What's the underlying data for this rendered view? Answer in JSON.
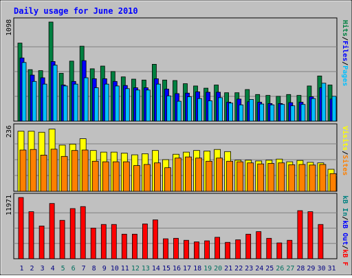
{
  "chart_data": {
    "type": "bar",
    "title": "Daily usage for June 2010",
    "x_tick_labels": [
      "1",
      "2",
      "3",
      "4",
      "5",
      "6",
      "7",
      "8",
      "9",
      "10",
      "11",
      "12",
      "13",
      "14",
      "15",
      "16",
      "17",
      "18",
      "19",
      "20",
      "21",
      "22",
      "23",
      "24",
      "25",
      "26",
      "27",
      "28",
      "29",
      "30",
      "31"
    ],
    "weekend_days": [
      "5",
      "6",
      "12",
      "13",
      "19",
      "20",
      "26",
      "27"
    ],
    "colors": {
      "background": "#c0c0c0",
      "frame": "#ffffff",
      "title": "#0000ff",
      "hits": "#008040",
      "files": "#0000ff",
      "pages": "#00c0ff",
      "visits": "#ffff00",
      "sites": "#ff8000",
      "kb_in": "#008080",
      "kb_out": "#0000ff",
      "kb_f": "#ff0000",
      "weekend_label": "#006f5f",
      "weekday_label": "#000080"
    },
    "panels": [
      {
        "name": "hits-files-pages",
        "ymax": 1098,
        "ymax_label": "1098",
        "legend": [
          {
            "text": "Pages",
            "color": "#00c0ff"
          },
          {
            "text": "/",
            "color": "#000000"
          },
          {
            "text": "Files",
            "color": "#0000ff"
          },
          {
            "text": "/",
            "color": "#000000"
          },
          {
            "text": "Hits",
            "color": "#008040"
          }
        ],
        "series": [
          {
            "name": "Hits",
            "values": [
              865,
              570,
              560,
              1098,
              530,
              665,
              830,
              580,
              610,
              550,
              490,
              465,
              455,
              630,
              455,
              450,
              415,
              390,
              365,
              400,
              315,
              315,
              350,
              295,
              285,
              275,
              295,
              285,
              390,
              500,
              400
            ]
          },
          {
            "name": "Files",
            "values": [
              700,
              510,
              480,
              660,
              400,
              440,
              670,
              470,
              470,
              440,
              395,
              370,
              370,
              470,
              355,
              305,
              310,
              325,
              320,
              320,
              210,
              245,
              215,
              210,
              195,
              195,
              205,
              210,
              270,
              370,
              245
            ]
          },
          {
            "name": "Pages",
            "values": [
              650,
              440,
              410,
              620,
              390,
              410,
              480,
              370,
              410,
              390,
              360,
              345,
              345,
              410,
              280,
              220,
              270,
              250,
              225,
              260,
              200,
              180,
              240,
              190,
              180,
              185,
              170,
              185,
              250,
              420,
              275
            ]
          }
        ]
      },
      {
        "name": "visits-sites",
        "ymax": 236,
        "ymax_label": "236",
        "legend": [
          {
            "text": "Sites",
            "color": "#ff8000"
          },
          {
            "text": "/",
            "color": "#000000"
          },
          {
            "text": "Visits",
            "color": "#ffff00"
          }
        ],
        "series": [
          {
            "name": "Visits",
            "values": [
              224,
              224,
              220,
              232,
              172,
              176,
              196,
              152,
              146,
              146,
              142,
              136,
              140,
              152,
              118,
              138,
              146,
              152,
              150,
              156,
              148,
              116,
              116,
              113,
              116,
              120,
              110,
              115,
              108,
              106,
              82
            ]
          },
          {
            "name": "Sites",
            "values": [
              154,
              156,
              135,
              157,
              130,
              152,
              154,
              112,
              110,
              110,
              110,
              96,
              100,
              106,
              88,
              124,
              128,
              124,
              112,
              124,
              112,
              110,
              106,
              102,
              104,
              106,
              99,
              100,
              98,
              100,
              66
            ]
          }
        ]
      },
      {
        "name": "kbytes",
        "ymax": 11971,
        "ymax_label": "11971",
        "legend": [
          {
            "text": "kB F",
            "color": "#ff0000"
          },
          {
            "text": "/",
            "color": "#000000"
          },
          {
            "text": "kB Out",
            "color": "#0000ff"
          },
          {
            "text": "/",
            "color": "#000000"
          },
          {
            "text": "kB In",
            "color": "#008080"
          }
        ],
        "series": [
          {
            "name": "kB F",
            "values": [
              11971,
              9200,
              6400,
              10800,
              7500,
              9800,
              10200,
              6000,
              6700,
              6700,
              4800,
              4800,
              6800,
              7600,
              3900,
              4000,
              3600,
              3300,
              3500,
              4200,
              3200,
              3700,
              4800,
              5300,
              4000,
              3100,
              3600,
              9400,
              9200,
              6700,
              0
            ]
          }
        ]
      }
    ]
  }
}
